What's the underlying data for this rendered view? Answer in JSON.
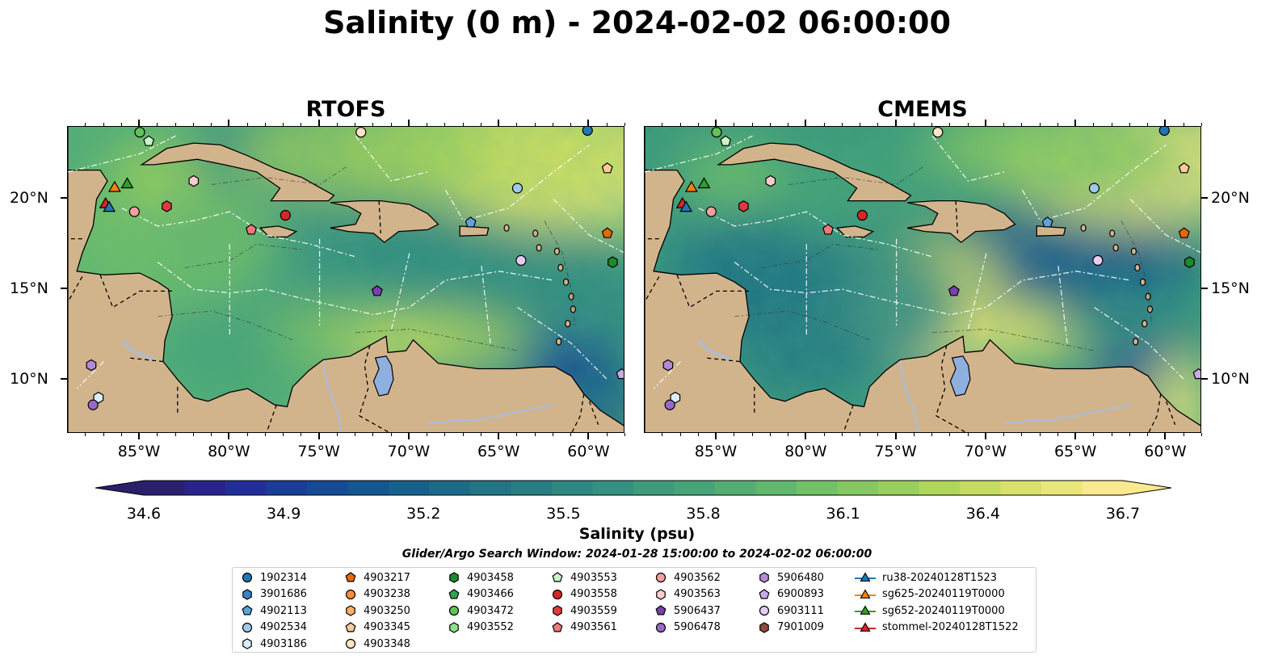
{
  "figure": {
    "title": "Salinity (0 m) - 2024-02-02 06:00:00",
    "search_window": "Glider/Argo Search Window: 2024-01-28 15:00:00 to 2024-02-02 06:00:00"
  },
  "panels": [
    {
      "title": "RTOFS"
    },
    {
      "title": "CMEMS"
    }
  ],
  "axes": {
    "lon_range": [
      -89,
      -58
    ],
    "lat_range": [
      7,
      24
    ],
    "x_ticks": [
      "85°W",
      "80°W",
      "75°W",
      "70°W",
      "65°W",
      "60°W"
    ],
    "x_tick_values": [
      -85,
      -80,
      -75,
      -70,
      -65,
      -60
    ],
    "y_ticks": [
      "20°N",
      "15°N",
      "10°N"
    ],
    "y_tick_values": [
      20,
      15,
      10
    ]
  },
  "colorbar": {
    "label": "Salinity (psu)",
    "ticks": [
      "34.6",
      "34.9",
      "35.2",
      "35.5",
      "35.8",
      "36.1",
      "36.4",
      "36.7"
    ],
    "tick_values": [
      34.6,
      34.9,
      35.2,
      35.5,
      35.8,
      36.1,
      36.4,
      36.7
    ],
    "range": [
      34.6,
      36.7
    ],
    "extend": "both",
    "colormap": "haline",
    "colors": [
      "#2a1f6b",
      "#28238a",
      "#222e98",
      "#1a3d9a",
      "#154a96",
      "#145690",
      "#16618b",
      "#1c6b88",
      "#227585",
      "#287e84",
      "#2e8882",
      "#35917f",
      "#3d9b7c",
      "#47a478",
      "#53ae74",
      "#62b76e",
      "#72c068",
      "#85c861",
      "#99cf5c",
      "#aed65a",
      "#c4dc5f",
      "#d8e26a",
      "#eae77a",
      "#fae98e"
    ]
  },
  "map_colors": {
    "land": "#d2b48c",
    "lake": "#8fb0df",
    "river": "#a8bde0",
    "deep_low": "#2a1f6b"
  },
  "legend": {
    "columns": [
      [
        {
          "label": "1902314",
          "marker": "circle",
          "color": "#1f77b4"
        },
        {
          "label": "3901686",
          "marker": "hexagon",
          "color": "#3b82c4"
        },
        {
          "label": "4902113",
          "marker": "pentagon",
          "color": "#5ea4d8"
        },
        {
          "label": "4902534",
          "marker": "circle",
          "color": "#9ecae9"
        },
        {
          "label": "4903186",
          "marker": "hexagon",
          "color": "#dbeeff"
        }
      ],
      [
        {
          "label": "4903217",
          "marker": "pentagon",
          "color": "#e6660b"
        },
        {
          "label": "4903238",
          "marker": "circle",
          "color": "#fd8d3c"
        },
        {
          "label": "4903250",
          "marker": "hexagon",
          "color": "#fdae6b"
        },
        {
          "label": "4903345",
          "marker": "pentagon",
          "color": "#fdcc99"
        },
        {
          "label": "4903348",
          "marker": "circle",
          "color": "#fde5c6"
        }
      ],
      [
        {
          "label": "4903458",
          "marker": "hexagon",
          "color": "#1b8c2a"
        },
        {
          "label": "4903466",
          "marker": "pentagon",
          "color": "#31a354"
        },
        {
          "label": "4903472",
          "marker": "circle",
          "color": "#5fc35a"
        },
        {
          "label": "4903552",
          "marker": "hexagon",
          "color": "#8fe08c"
        }
      ],
      [
        {
          "label": "4903553",
          "marker": "pentagon",
          "color": "#c7f7c3"
        },
        {
          "label": "4903558",
          "marker": "circle",
          "color": "#d62728"
        },
        {
          "label": "4903559",
          "marker": "hexagon",
          "color": "#e0393f"
        },
        {
          "label": "4903561",
          "marker": "pentagon",
          "color": "#f07878"
        }
      ],
      [
        {
          "label": "4903562",
          "marker": "circle",
          "color": "#f4a0a0"
        },
        {
          "label": "4903563",
          "marker": "hexagon",
          "color": "#fccccc"
        },
        {
          "label": "5906437",
          "marker": "pentagon",
          "color": "#7b3fb0"
        },
        {
          "label": "5906478",
          "marker": "circle",
          "color": "#9a68c9"
        }
      ],
      [
        {
          "label": "5906480",
          "marker": "hexagon",
          "color": "#b48ad8"
        },
        {
          "label": "6900893",
          "marker": "pentagon",
          "color": "#c9aae6"
        },
        {
          "label": "6903111",
          "marker": "circle",
          "color": "#e3cdf3"
        },
        {
          "label": "7901009",
          "marker": "hexagon",
          "color": "#8c4a3a"
        }
      ],
      [
        {
          "label": "ru38-20240128T1523",
          "marker": "triangle-line",
          "color": "#1f77b4"
        },
        {
          "label": "sg625-20240119T0000",
          "marker": "triangle-line",
          "color": "#ff7f0e"
        },
        {
          "label": "sg652-20240119T0000",
          "marker": "triangle-line",
          "color": "#2ca02c"
        },
        {
          "label": "stommel-20240128T1522",
          "marker": "triangle-line",
          "color": "#d62728"
        }
      ]
    ]
  },
  "floats": [
    {
      "lon": -87.7,
      "lat": 10.8,
      "marker": "hexagon",
      "color": "#b48ad8"
    },
    {
      "lon": -87.3,
      "lat": 9.0,
      "marker": "hexagon",
      "color": "#dbeeff"
    },
    {
      "lon": -87.6,
      "lat": 8.6,
      "marker": "circle",
      "color": "#9a68c9"
    },
    {
      "lon": -85.3,
      "lat": 19.3,
      "marker": "circle",
      "color": "#f4a0a0"
    },
    {
      "lon": -83.5,
      "lat": 19.6,
      "marker": "hexagon",
      "color": "#e0393f"
    },
    {
      "lon": -82.0,
      "lat": 21.0,
      "marker": "hexagon",
      "color": "#fccccc"
    },
    {
      "lon": -84.5,
      "lat": 23.2,
      "marker": "pentagon",
      "color": "#c7f7c3"
    },
    {
      "lon": -85.0,
      "lat": 23.7,
      "marker": "circle",
      "color": "#5fc35a"
    },
    {
      "lon": -78.8,
      "lat": 18.3,
      "marker": "pentagon",
      "color": "#f07878"
    },
    {
      "lon": -76.9,
      "lat": 19.1,
      "marker": "circle",
      "color": "#d62728"
    },
    {
      "lon": -71.8,
      "lat": 14.9,
      "marker": "pentagon",
      "color": "#7b3fb0"
    },
    {
      "lon": -72.7,
      "lat": 23.7,
      "marker": "circle",
      "color": "#fde5c6"
    },
    {
      "lon": -66.6,
      "lat": 18.7,
      "marker": "pentagon",
      "color": "#5ea4d8"
    },
    {
      "lon": -64.0,
      "lat": 20.6,
      "marker": "circle",
      "color": "#9ecae9"
    },
    {
      "lon": -63.8,
      "lat": 16.6,
      "marker": "circle",
      "color": "#e3cdf3"
    },
    {
      "lon": -60.1,
      "lat": 23.8,
      "marker": "circle",
      "color": "#1f77b4"
    },
    {
      "lon": -59.0,
      "lat": 21.7,
      "marker": "pentagon",
      "color": "#fdcc99"
    },
    {
      "lon": -59.0,
      "lat": 18.1,
      "marker": "pentagon",
      "color": "#e6660b"
    },
    {
      "lon": -58.7,
      "lat": 16.5,
      "marker": "hexagon",
      "color": "#1b8c2a"
    },
    {
      "lon": -58.2,
      "lat": 10.3,
      "marker": "pentagon",
      "color": "#c9aae6"
    }
  ],
  "gliders": [
    {
      "lon": -86.4,
      "lat": 20.6,
      "color": "#ff7f0e"
    },
    {
      "lon": -85.7,
      "lat": 20.8,
      "color": "#2ca02c"
    },
    {
      "lon": -86.9,
      "lat": 19.7,
      "color": "#d62728"
    },
    {
      "lon": -86.7,
      "lat": 19.5,
      "color": "#1f77b4"
    }
  ]
}
